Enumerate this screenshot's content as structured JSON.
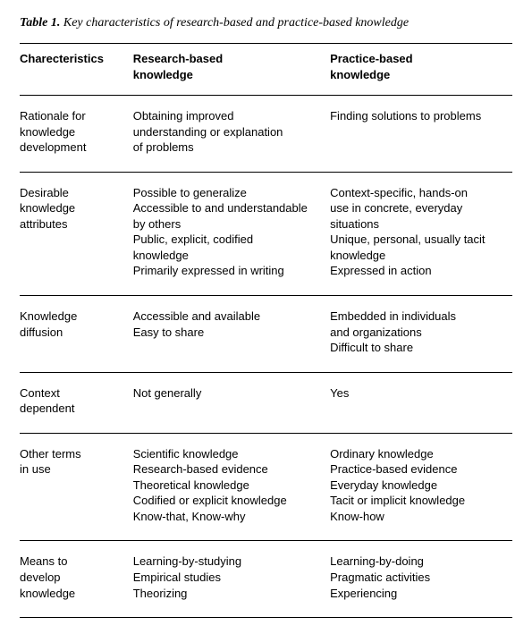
{
  "caption": {
    "label": "Table 1.",
    "text": "Key characteristics of research-based and practice-based knowledge"
  },
  "table": {
    "type": "table",
    "background_color": "#ffffff",
    "text_color": "#000000",
    "border_color": "#000000",
    "header_fontweight": "bold",
    "body_fontfamily": "Helvetica, Arial, sans-serif",
    "caption_fontfamily": "Georgia, serif",
    "fontsize_body": 13,
    "fontsize_caption": 14,
    "col_widths_pct": [
      23,
      40,
      37
    ],
    "columns": [
      "Charecteristics",
      "Research-based\nknowledge",
      "Practice-based\nknowledge"
    ],
    "rows": [
      [
        "Rationale for\nknowledge\ndevelopment",
        "Obtaining improved\nunderstanding or explanation\nof problems",
        "Finding solutions to problems"
      ],
      [
        "Desirable\nknowledge\nattributes",
        "Possible to generalize\nAccessible to and understandable\nby others\nPublic, explicit, codified\nknowledge\nPrimarily expressed in writing",
        "Context-specific, hands-on\nuse in concrete, everyday\nsituations\nUnique, personal, usually tacit\nknowledge\nExpressed in action"
      ],
      [
        "Knowledge\ndiffusion",
        "Accessible and available\nEasy to share",
        "Embedded in individuals\nand organizations\nDifficult to share"
      ],
      [
        "Context\ndependent",
        "Not generally",
        "Yes"
      ],
      [
        "Other terms\nin use",
        "Scientific knowledge\nResearch-based evidence\nTheoretical knowledge\nCodified or explicit knowledge\nKnow-that, Know-why",
        "Ordinary knowledge\nPractice-based evidence\nEveryday knowledge\nTacit or implicit knowledge\nKnow-how"
      ],
      [
        "Means to\ndevelop\nknowledge",
        "Learning-by-studying\nEmpirical studies\nTheorizing",
        "Learning-by-doing\nPragmatic activities\nExperiencing"
      ]
    ]
  }
}
